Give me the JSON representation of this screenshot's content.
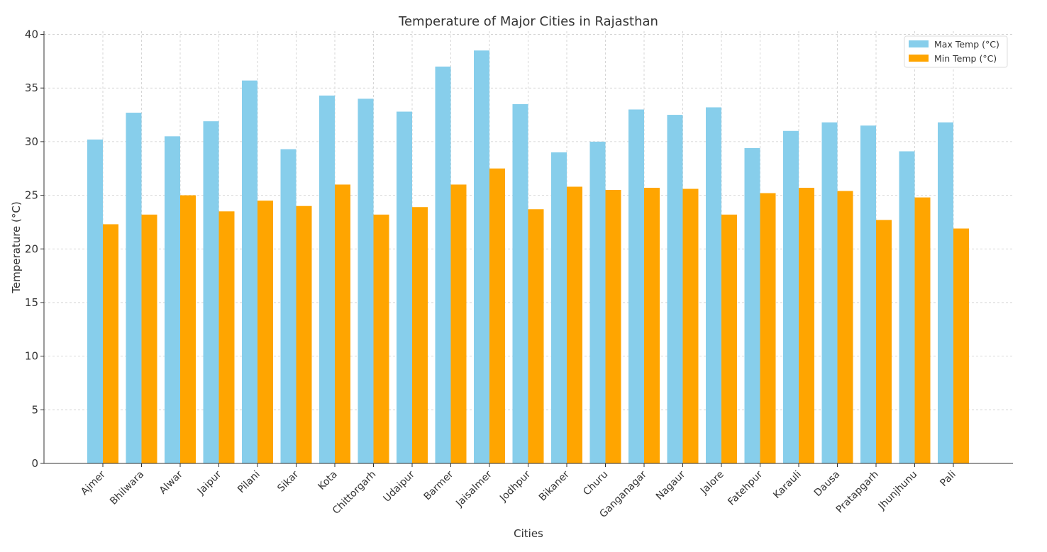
{
  "chart_data": {
    "type": "bar",
    "title": "Temperature of Major Cities in Rajasthan",
    "xlabel": "Cities",
    "ylabel": "Temperature (°C)",
    "ylim": [
      0,
      40.3
    ],
    "yticks": [
      0,
      5,
      10,
      15,
      20,
      25,
      30,
      35,
      40
    ],
    "grid": true,
    "legend_position": "top-right",
    "categories": [
      "Ajmer",
      "Bhilwara",
      "Alwar",
      "Jaipur",
      "Pilani",
      "Sikar",
      "Kota",
      "Chittorgarh",
      "Udaipur",
      "Barmer",
      "Jaisalmer",
      "Jodhpur",
      "Bikaner",
      "Churu",
      "Ganganagar",
      "Nagaur",
      "Jalore",
      "Fatehpur",
      "Karauli",
      "Dausa",
      "Pratapgarh",
      "Jhunjhunu",
      "Pali"
    ],
    "series": [
      {
        "name": "Max Temp (°C)",
        "color": "#87ceeb",
        "values": [
          30.2,
          32.7,
          30.5,
          31.9,
          35.7,
          29.3,
          34.3,
          34.0,
          32.8,
          37.0,
          38.5,
          33.5,
          29.0,
          30.0,
          33.0,
          32.5,
          33.2,
          29.4,
          31.0,
          31.8,
          31.5,
          29.1,
          31.8
        ]
      },
      {
        "name": "Min Temp (°C)",
        "color": "#ffa500",
        "values": [
          22.3,
          23.2,
          25.0,
          23.5,
          24.5,
          24.0,
          26.0,
          23.2,
          23.9,
          26.0,
          27.5,
          23.7,
          25.8,
          25.5,
          25.7,
          25.6,
          23.2,
          25.2,
          25.7,
          25.4,
          22.7,
          24.8,
          21.9
        ]
      }
    ]
  }
}
